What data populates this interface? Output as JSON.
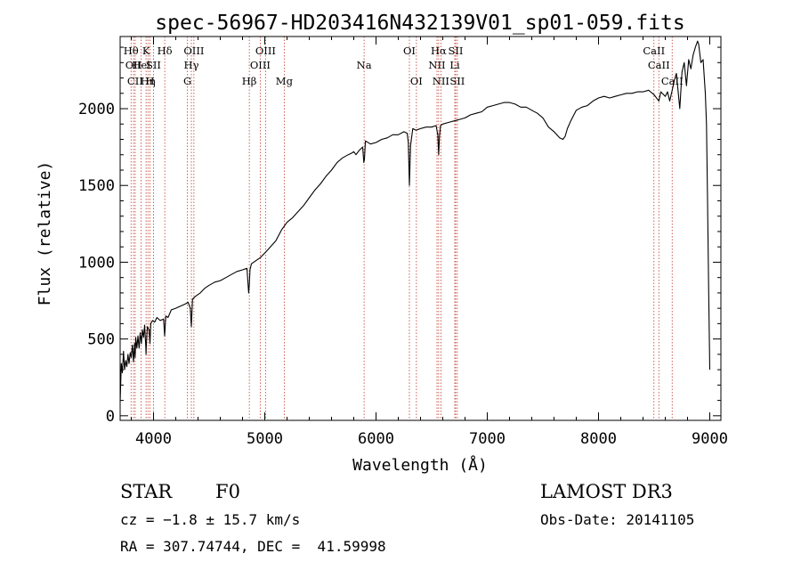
{
  "chart_data": {
    "type": "line",
    "title": "spec-56967-HD203416N432139V01_sp01-059.fits",
    "xlabel": "Wavelength (Å)",
    "ylabel": "Flux (relative)",
    "xlim": [
      3700,
      9100
    ],
    "ylim": [
      -30,
      2470
    ],
    "xticks": [
      4000,
      5000,
      6000,
      7000,
      8000,
      9000
    ],
    "yticks": [
      0,
      500,
      1000,
      1500,
      2000
    ],
    "series": [
      {
        "name": "spectrum",
        "x": [
          3700,
          3710,
          3720,
          3730,
          3740,
          3750,
          3760,
          3770,
          3780,
          3790,
          3800,
          3810,
          3820,
          3830,
          3835,
          3840,
          3850,
          3860,
          3870,
          3880,
          3890,
          3900,
          3910,
          3920,
          3930,
          3933,
          3936,
          3945,
          3960,
          3968,
          3975,
          3990,
          4010,
          4030,
          4060,
          4090,
          4100,
          4110,
          4130,
          4160,
          4200,
          4230,
          4260,
          4290,
          4310,
          4330,
          4340,
          4350,
          4380,
          4420,
          4460,
          4500,
          4550,
          4600,
          4650,
          4700,
          4750,
          4800,
          4840,
          4855,
          4861,
          4867,
          4880,
          4920,
          4960,
          5000,
          5050,
          5100,
          5150,
          5200,
          5250,
          5300,
          5350,
          5400,
          5450,
          5500,
          5550,
          5600,
          5650,
          5700,
          5750,
          5780,
          5800,
          5820,
          5850,
          5880,
          5890,
          5896,
          5905,
          5950,
          6000,
          6050,
          6100,
          6150,
          6200,
          6250,
          6280,
          6290,
          6300,
          6310,
          6330,
          6360,
          6400,
          6450,
          6500,
          6540,
          6555,
          6563,
          6570,
          6580,
          6600,
          6650,
          6700,
          6750,
          6800,
          6850,
          6900,
          6950,
          7000,
          7050,
          7100,
          7150,
          7200,
          7250,
          7300,
          7350,
          7400,
          7450,
          7500,
          7550,
          7600,
          7650,
          7680,
          7700,
          7720,
          7750,
          7800,
          7850,
          7900,
          7950,
          8000,
          8050,
          8100,
          8150,
          8200,
          8250,
          8300,
          8350,
          8400,
          8450,
          8500,
          8542,
          8560,
          8600,
          8620,
          8640,
          8662,
          8680,
          8700,
          8730,
          8750,
          8770,
          8790,
          8810,
          8830,
          8850,
          8870,
          8890,
          8900,
          8920,
          8940,
          8960,
          8970,
          8980,
          8990,
          9000
        ],
        "y": [
          90,
          340,
          280,
          420,
          300,
          360,
          320,
          400,
          340,
          410,
          380,
          460,
          350,
          470,
          380,
          510,
          440,
          520,
          440,
          540,
          470,
          560,
          510,
          590,
          450,
          400,
          470,
          580,
          560,
          470,
          600,
          620,
          610,
          640,
          620,
          630,
          520,
          650,
          640,
          690,
          700,
          710,
          720,
          730,
          740,
          700,
          580,
          760,
          780,
          800,
          830,
          850,
          870,
          880,
          900,
          920,
          940,
          950,
          960,
          800,
          850,
          950,
          990,
          1010,
          1030,
          1060,
          1100,
          1140,
          1210,
          1260,
          1290,
          1330,
          1370,
          1420,
          1470,
          1510,
          1560,
          1600,
          1650,
          1680,
          1700,
          1710,
          1720,
          1700,
          1730,
          1750,
          1650,
          1670,
          1790,
          1770,
          1780,
          1800,
          1810,
          1830,
          1830,
          1850,
          1840,
          1780,
          1500,
          1760,
          1870,
          1860,
          1870,
          1880,
          1880,
          1890,
          1830,
          1700,
          1820,
          1890,
          1900,
          1910,
          1920,
          1930,
          1940,
          1960,
          1970,
          1980,
          2010,
          2020,
          2030,
          2040,
          2040,
          2030,
          2010,
          2010,
          1990,
          1970,
          1940,
          1880,
          1850,
          1810,
          1800,
          1820,
          1870,
          1920,
          1990,
          2010,
          2020,
          2050,
          2070,
          2080,
          2070,
          2080,
          2090,
          2100,
          2100,
          2110,
          2110,
          2120,
          2090,
          2050,
          2110,
          2080,
          2110,
          2050,
          2120,
          2180,
          2230,
          2000,
          2240,
          2300,
          2150,
          2320,
          2260,
          2350,
          2400,
          2440,
          2420,
          2300,
          2320,
          2100,
          1900,
          1400,
          800,
          300
        ]
      }
    ],
    "line_markers": [
      {
        "wl": 3798,
        "label": "Hθ",
        "row": 1
      },
      {
        "wl": 3820,
        "label": "OII",
        "row": 2
      },
      {
        "wl": 3835,
        "label": "CII",
        "row": 3
      },
      {
        "wl": 3889,
        "label": "Hel",
        "row": 2
      },
      {
        "wl": 3933,
        "label": "K",
        "row": 1
      },
      {
        "wl": 3950,
        "label": "Hη",
        "row": 3
      },
      {
        "wl": 3968,
        "label": "H",
        "row": 3
      },
      {
        "wl": 4000,
        "label": "SII",
        "row": 2
      },
      {
        "wl": 4101,
        "label": "Hδ",
        "row": 1
      },
      {
        "wl": 4305,
        "label": "G",
        "row": 3
      },
      {
        "wl": 4340,
        "label": "Hγ",
        "row": 2
      },
      {
        "wl": 4363,
        "label": "OIII",
        "row": 1
      },
      {
        "wl": 4861,
        "label": "Hβ",
        "row": 3
      },
      {
        "wl": 4959,
        "label": "OIII",
        "row": 2
      },
      {
        "wl": 5007,
        "label": "OIII",
        "row": 1
      },
      {
        "wl": 5175,
        "label": "Mg",
        "row": 3
      },
      {
        "wl": 5893,
        "label": "Na",
        "row": 2
      },
      {
        "wl": 6300,
        "label": "OI",
        "row": 1
      },
      {
        "wl": 6363,
        "label": "OI",
        "row": 3
      },
      {
        "wl": 6548,
        "label": "NII",
        "row": 2
      },
      {
        "wl": 6563,
        "label": "Hα",
        "row": 1
      },
      {
        "wl": 6583,
        "label": "NII",
        "row": 3
      },
      {
        "wl": 6708,
        "label": "Li",
        "row": 2
      },
      {
        "wl": 6716,
        "label": "SII",
        "row": 1
      },
      {
        "wl": 6731,
        "label": "SII",
        "row": 3
      },
      {
        "wl": 8498,
        "label": "CaII",
        "row": 1
      },
      {
        "wl": 8542,
        "label": "CaII",
        "row": 2
      },
      {
        "wl": 8662,
        "label": "CaII",
        "row": 3
      }
    ]
  },
  "info": {
    "star_type": "STAR",
    "subclass": "F0",
    "survey": "LAMOST DR3",
    "cz": "cz = −1.8 ± 15.7 km/s",
    "obs_date": "Obs-Date: 20141105",
    "radec": "RA = 307.74744, DEC =  41.59998"
  },
  "colors": {
    "axis": "#000000",
    "spectrum": "#000000",
    "marker": "#c0392b",
    "background": "#ffffff"
  }
}
